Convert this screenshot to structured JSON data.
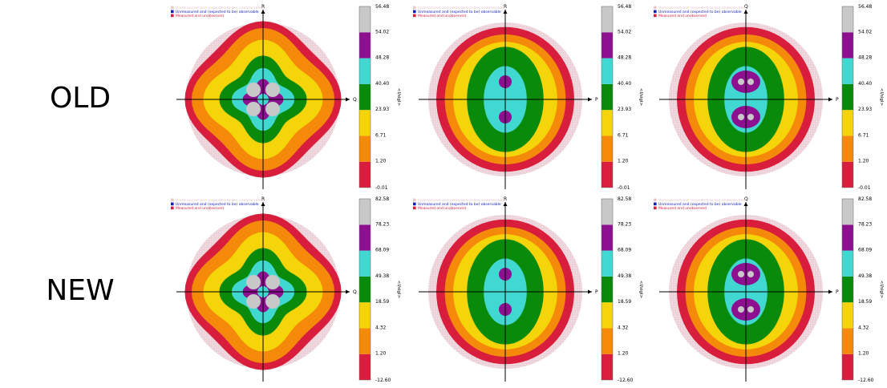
{
  "row_labels": [
    "OLD",
    "NEW"
  ],
  "legend": {
    "unobservable": "Unmeasured and (expected to be) unobservable",
    "observable": "Unmeasured and (expected to be) observable",
    "measured": "Measured and unobserved"
  },
  "legend_colors": {
    "unobservable": "#e8c8d0",
    "observable": "#1020c0",
    "measured": "#d81e3c"
  },
  "colorbar_label": "<I/sigI>",
  "colorbar_colors": [
    "#d81e3c",
    "#f58a0a",
    "#f5d40a",
    "#0a8a0a",
    "#40d8d0",
    "#8c1090",
    "#c8c8c8"
  ],
  "chart_data": [
    {
      "type": "heatmap",
      "row": "OLD",
      "h_axis": "Q",
      "v_axis": "R",
      "shape": "quad-lobed",
      "inner_symbol": "circle-rings",
      "colorbar_ticks": [
        "-0.01",
        "1.20",
        "6.71",
        "23.93",
        "40.40",
        "48.28",
        "54.02",
        "56.48"
      ]
    },
    {
      "type": "heatmap",
      "row": "OLD",
      "h_axis": "P",
      "v_axis": "R",
      "shape": "oval-vertical",
      "inner_symbol": "two-spots",
      "colorbar_ticks": [
        "-0.01",
        "1.20",
        "6.71",
        "23.93",
        "40.40",
        "48.28",
        "54.02",
        "56.48"
      ]
    },
    {
      "type": "heatmap",
      "row": "OLD",
      "h_axis": "P",
      "v_axis": "Q",
      "shape": "oval-vertical",
      "inner_symbol": "two-hearts",
      "colorbar_ticks": [
        "-0.01",
        "1.20",
        "6.71",
        "23.93",
        "40.40",
        "48.28",
        "54.02",
        "56.48"
      ]
    },
    {
      "type": "heatmap",
      "row": "NEW",
      "h_axis": "Q",
      "v_axis": "R",
      "shape": "quad-lobed",
      "inner_symbol": "circle-rings",
      "colorbar_ticks": [
        "-12.60",
        "1.20",
        "4.32",
        "18.59",
        "49.38",
        "68.09",
        "78.23",
        "82.58"
      ]
    },
    {
      "type": "heatmap",
      "row": "NEW",
      "h_axis": "P",
      "v_axis": "R",
      "shape": "oval-vertical",
      "inner_symbol": "two-spots",
      "colorbar_ticks": [
        "-12.60",
        "1.20",
        "4.32",
        "18.59",
        "49.38",
        "68.09",
        "78.23",
        "82.58"
      ]
    },
    {
      "type": "heatmap",
      "row": "NEW",
      "h_axis": "P",
      "v_axis": "Q",
      "shape": "oval-vertical",
      "inner_symbol": "two-hearts",
      "colorbar_ticks": [
        "-12.60",
        "1.20",
        "4.32",
        "18.59",
        "49.38",
        "68.09",
        "78.23",
        "82.58"
      ]
    }
  ]
}
